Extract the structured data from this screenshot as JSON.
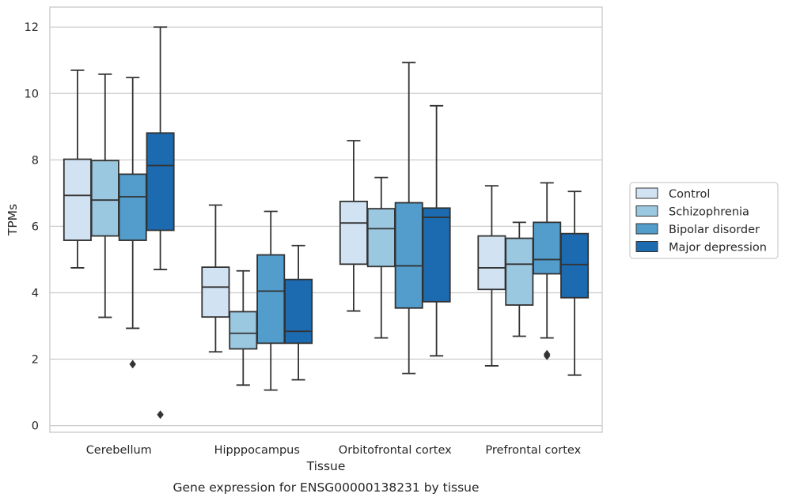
{
  "chart_data": {
    "type": "box",
    "title": "",
    "caption": "Gene expression for ENSG00000138231 by tissue",
    "xlabel": "Tissue",
    "ylabel": "TPMs",
    "ylim": [
      -0.2,
      12.6
    ],
    "yticks": [
      0,
      2,
      4,
      6,
      8,
      10,
      12
    ],
    "grid": "horizontal",
    "legend_position": "right-center",
    "categories": [
      "Cerebellum",
      "Hipppocampus",
      "Orbitofrontal cortex",
      "Prefrontal cortex"
    ],
    "series": [
      {
        "name": "Control",
        "color": "#d1e2f2",
        "boxes": [
          {
            "whislo": 4.75,
            "q1": 5.58,
            "med": 6.93,
            "q3": 8.02,
            "whishi": 10.7,
            "fliers": []
          },
          {
            "whislo": 2.22,
            "q1": 3.27,
            "med": 4.17,
            "q3": 4.77,
            "whishi": 6.64,
            "fliers": []
          },
          {
            "whislo": 3.45,
            "q1": 4.86,
            "med": 6.1,
            "q3": 6.75,
            "whishi": 8.58,
            "fliers": []
          },
          {
            "whislo": 1.8,
            "q1": 4.1,
            "med": 4.75,
            "q3": 5.71,
            "whishi": 7.22,
            "fliers": []
          }
        ]
      },
      {
        "name": "Schizophrenia",
        "color": "#9ac8e0",
        "boxes": [
          {
            "whislo": 3.26,
            "q1": 5.71,
            "med": 6.79,
            "q3": 7.98,
            "whishi": 10.58,
            "fliers": []
          },
          {
            "whislo": 1.22,
            "q1": 2.31,
            "med": 2.78,
            "q3": 3.43,
            "whishi": 4.66,
            "fliers": []
          },
          {
            "whislo": 2.64,
            "q1": 4.79,
            "med": 5.93,
            "q3": 6.53,
            "whishi": 7.47,
            "fliers": []
          },
          {
            "whislo": 2.69,
            "q1": 3.63,
            "med": 4.86,
            "q3": 5.64,
            "whishi": 6.12,
            "fliers": []
          }
        ]
      },
      {
        "name": "Bipolar disorder",
        "color": "#529dcc",
        "boxes": [
          {
            "whislo": 2.93,
            "q1": 5.58,
            "med": 6.89,
            "q3": 7.57,
            "whishi": 10.48,
            "fliers": [
              1.85
            ]
          },
          {
            "whislo": 1.07,
            "q1": 2.48,
            "med": 4.05,
            "q3": 5.14,
            "whishi": 6.45,
            "fliers": []
          },
          {
            "whislo": 1.57,
            "q1": 3.54,
            "med": 4.81,
            "q3": 6.71,
            "whishi": 10.93,
            "fliers": []
          },
          {
            "whislo": 2.64,
            "q1": 4.57,
            "med": 5,
            "q3": 6.12,
            "whishi": 7.31,
            "fliers": [
              2.1,
              2.15
            ]
          }
        ]
      },
      {
        "name": "Major depression",
        "color": "#1c6aaf",
        "boxes": [
          {
            "whislo": 4.7,
            "q1": 5.88,
            "med": 7.83,
            "q3": 8.81,
            "whishi": 12.0,
            "fliers": [
              0.33
            ]
          },
          {
            "whislo": 1.38,
            "q1": 2.48,
            "med": 2.84,
            "q3": 4.4,
            "whishi": 5.42,
            "fliers": []
          },
          {
            "whislo": 2.1,
            "q1": 3.73,
            "med": 6.27,
            "q3": 6.55,
            "whishi": 9.63,
            "fliers": []
          },
          {
            "whislo": 1.52,
            "q1": 3.85,
            "med": 4.85,
            "q3": 5.78,
            "whishi": 7.05,
            "fliers": []
          }
        ]
      }
    ]
  }
}
